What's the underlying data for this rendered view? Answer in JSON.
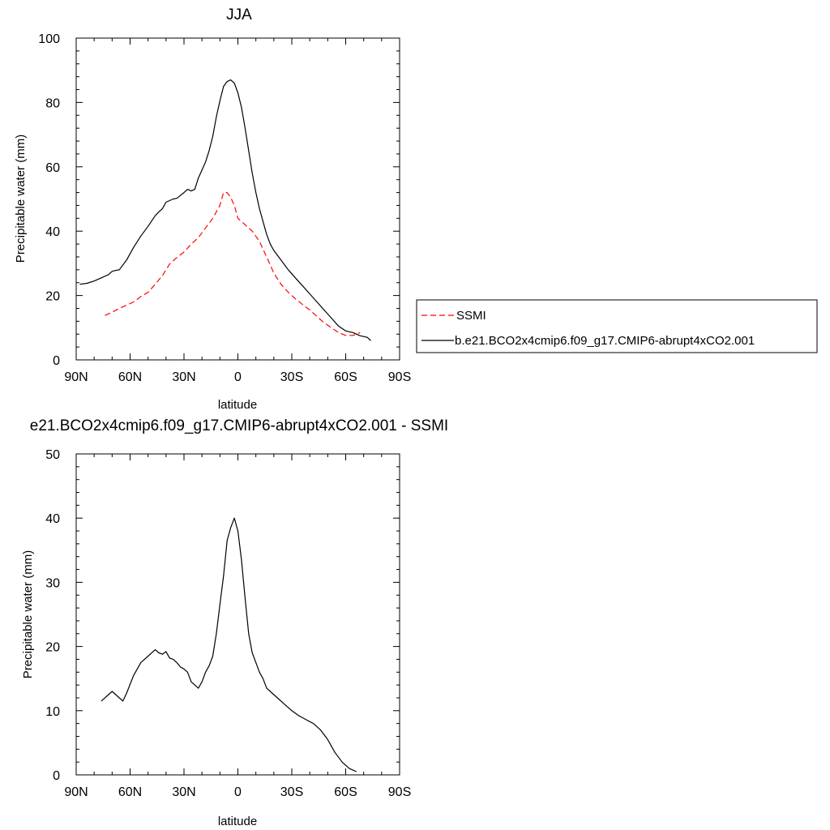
{
  "chart_data": [
    {
      "type": "line",
      "title": "JJA",
      "xlabel": "latitude",
      "ylabel": "Precipitable water (mm)",
      "xlim": [
        90,
        -90
      ],
      "ylim": [
        0,
        100
      ],
      "x_ticks": [
        90,
        60,
        30,
        0,
        -30,
        -60,
        -90
      ],
      "x_tick_labels": [
        "90N",
        "60N",
        "30N",
        "0",
        "30S",
        "60S",
        "90S"
      ],
      "y_ticks": [
        0,
        20,
        40,
        60,
        80,
        100
      ],
      "y_tick_labels": [
        "0",
        "20",
        "40",
        "60",
        "80",
        "100"
      ],
      "legend_position": "right",
      "series": [
        {
          "name": "SSMI",
          "color": "#ff0000",
          "style": "dashed",
          "x": [
            74,
            70,
            66,
            62,
            58,
            54,
            50,
            46,
            42,
            38,
            34,
            30,
            26,
            22,
            18,
            14,
            10,
            8,
            6,
            4,
            2,
            0,
            -4,
            -8,
            -12,
            -16,
            -20,
            -24,
            -28,
            -32,
            -36,
            -40,
            -44,
            -48,
            -52,
            -56,
            -60,
            -64,
            -68
          ],
          "values": [
            13.8,
            14.8,
            16.0,
            17.0,
            18.0,
            19.7,
            21.0,
            23.5,
            26.2,
            29.8,
            31.8,
            33.5,
            36.0,
            38.0,
            41.0,
            44.0,
            48.0,
            52.0,
            52.0,
            50.5,
            48.0,
            44.0,
            42.0,
            40.0,
            36.8,
            32.0,
            27.0,
            23.5,
            21.0,
            19.0,
            17.2,
            15.5,
            13.5,
            11.5,
            10.0,
            8.5,
            7.6,
            7.6,
            8.5
          ]
        },
        {
          "name": "b.e21.BCO2x4cmip6.f09_g17.CMIP6-abrupt4xCO2.001",
          "color": "#000000",
          "style": "solid",
          "x": [
            88,
            84,
            80,
            76,
            72,
            70,
            68,
            66,
            62,
            58,
            54,
            50,
            46,
            44,
            42,
            40,
            36,
            34,
            30,
            28,
            26,
            24,
            22,
            20,
            18,
            16,
            14,
            12,
            10,
            8,
            6,
            4,
            2,
            0,
            -2,
            -4,
            -6,
            -8,
            -10,
            -12,
            -14,
            -16,
            -18,
            -20,
            -22,
            -24,
            -28,
            -32,
            -36,
            -40,
            -44,
            -48,
            -52,
            -56,
            -60,
            -64,
            -68,
            -72,
            -74
          ],
          "values": [
            23.5,
            23.8,
            24.5,
            25.5,
            26.5,
            27.5,
            27.8,
            28.0,
            31.0,
            35.0,
            38.5,
            41.5,
            44.8,
            46.0,
            47.0,
            49.0,
            50.0,
            50.2,
            52.0,
            53.0,
            52.5,
            53.0,
            56.5,
            59.0,
            61.5,
            65.0,
            69.5,
            75.5,
            80.5,
            85.0,
            86.5,
            87.0,
            86.0,
            83.0,
            78.5,
            72.0,
            65.0,
            58.0,
            52.0,
            47.0,
            43.0,
            39.0,
            36.0,
            34.0,
            32.5,
            31.0,
            28.0,
            25.5,
            23.0,
            20.5,
            18.0,
            15.5,
            13.0,
            10.5,
            9.0,
            8.5,
            7.5,
            7.0,
            6.0
          ]
        }
      ]
    },
    {
      "type": "line",
      "title": "e21.BCO2x4cmip6.f09_g17.CMIP6-abrupt4xCO2.001 - SSMI",
      "xlabel": "latitude",
      "ylabel": "Precipitable water (mm)",
      "xlim": [
        90,
        -90
      ],
      "ylim": [
        0,
        50
      ],
      "x_ticks": [
        90,
        60,
        30,
        0,
        -30,
        -60,
        -90
      ],
      "x_tick_labels": [
        "90N",
        "60N",
        "30N",
        "0",
        "30S",
        "60S",
        "90S"
      ],
      "y_ticks": [
        0,
        10,
        20,
        30,
        40,
        50
      ],
      "y_tick_labels": [
        "0",
        "10",
        "20",
        "30",
        "40",
        "50"
      ],
      "series": [
        {
          "color": "#000000",
          "style": "solid",
          "x": [
            76,
            72,
            70,
            66,
            64,
            62,
            58,
            54,
            50,
            46,
            44,
            42,
            40,
            38,
            36,
            34,
            32,
            30,
            28,
            26,
            24,
            22,
            20,
            18,
            16,
            14,
            12,
            10,
            8,
            6,
            4,
            2,
            0,
            -2,
            -4,
            -6,
            -8,
            -10,
            -12,
            -14,
            -16,
            -18,
            -20,
            -22,
            -26,
            -30,
            -34,
            -38,
            -42,
            -46,
            -50,
            -54,
            -58,
            -62,
            -66
          ],
          "values": [
            11.5,
            12.5,
            13.0,
            12.0,
            11.5,
            12.7,
            15.5,
            17.5,
            18.5,
            19.5,
            19.0,
            18.8,
            19.2,
            18.2,
            18.0,
            17.5,
            16.8,
            16.5,
            16.0,
            14.5,
            14.0,
            13.5,
            14.5,
            16.0,
            17.0,
            18.5,
            22.0,
            26.5,
            31.0,
            36.5,
            38.5,
            40.0,
            38.0,
            33.5,
            27.5,
            22.0,
            19.0,
            17.5,
            16.0,
            15.0,
            13.5,
            13.0,
            12.5,
            12.0,
            11.0,
            10.0,
            9.2,
            8.6,
            8.0,
            7.0,
            5.5,
            3.5,
            2.0,
            1.0,
            0.5
          ]
        }
      ]
    }
  ]
}
